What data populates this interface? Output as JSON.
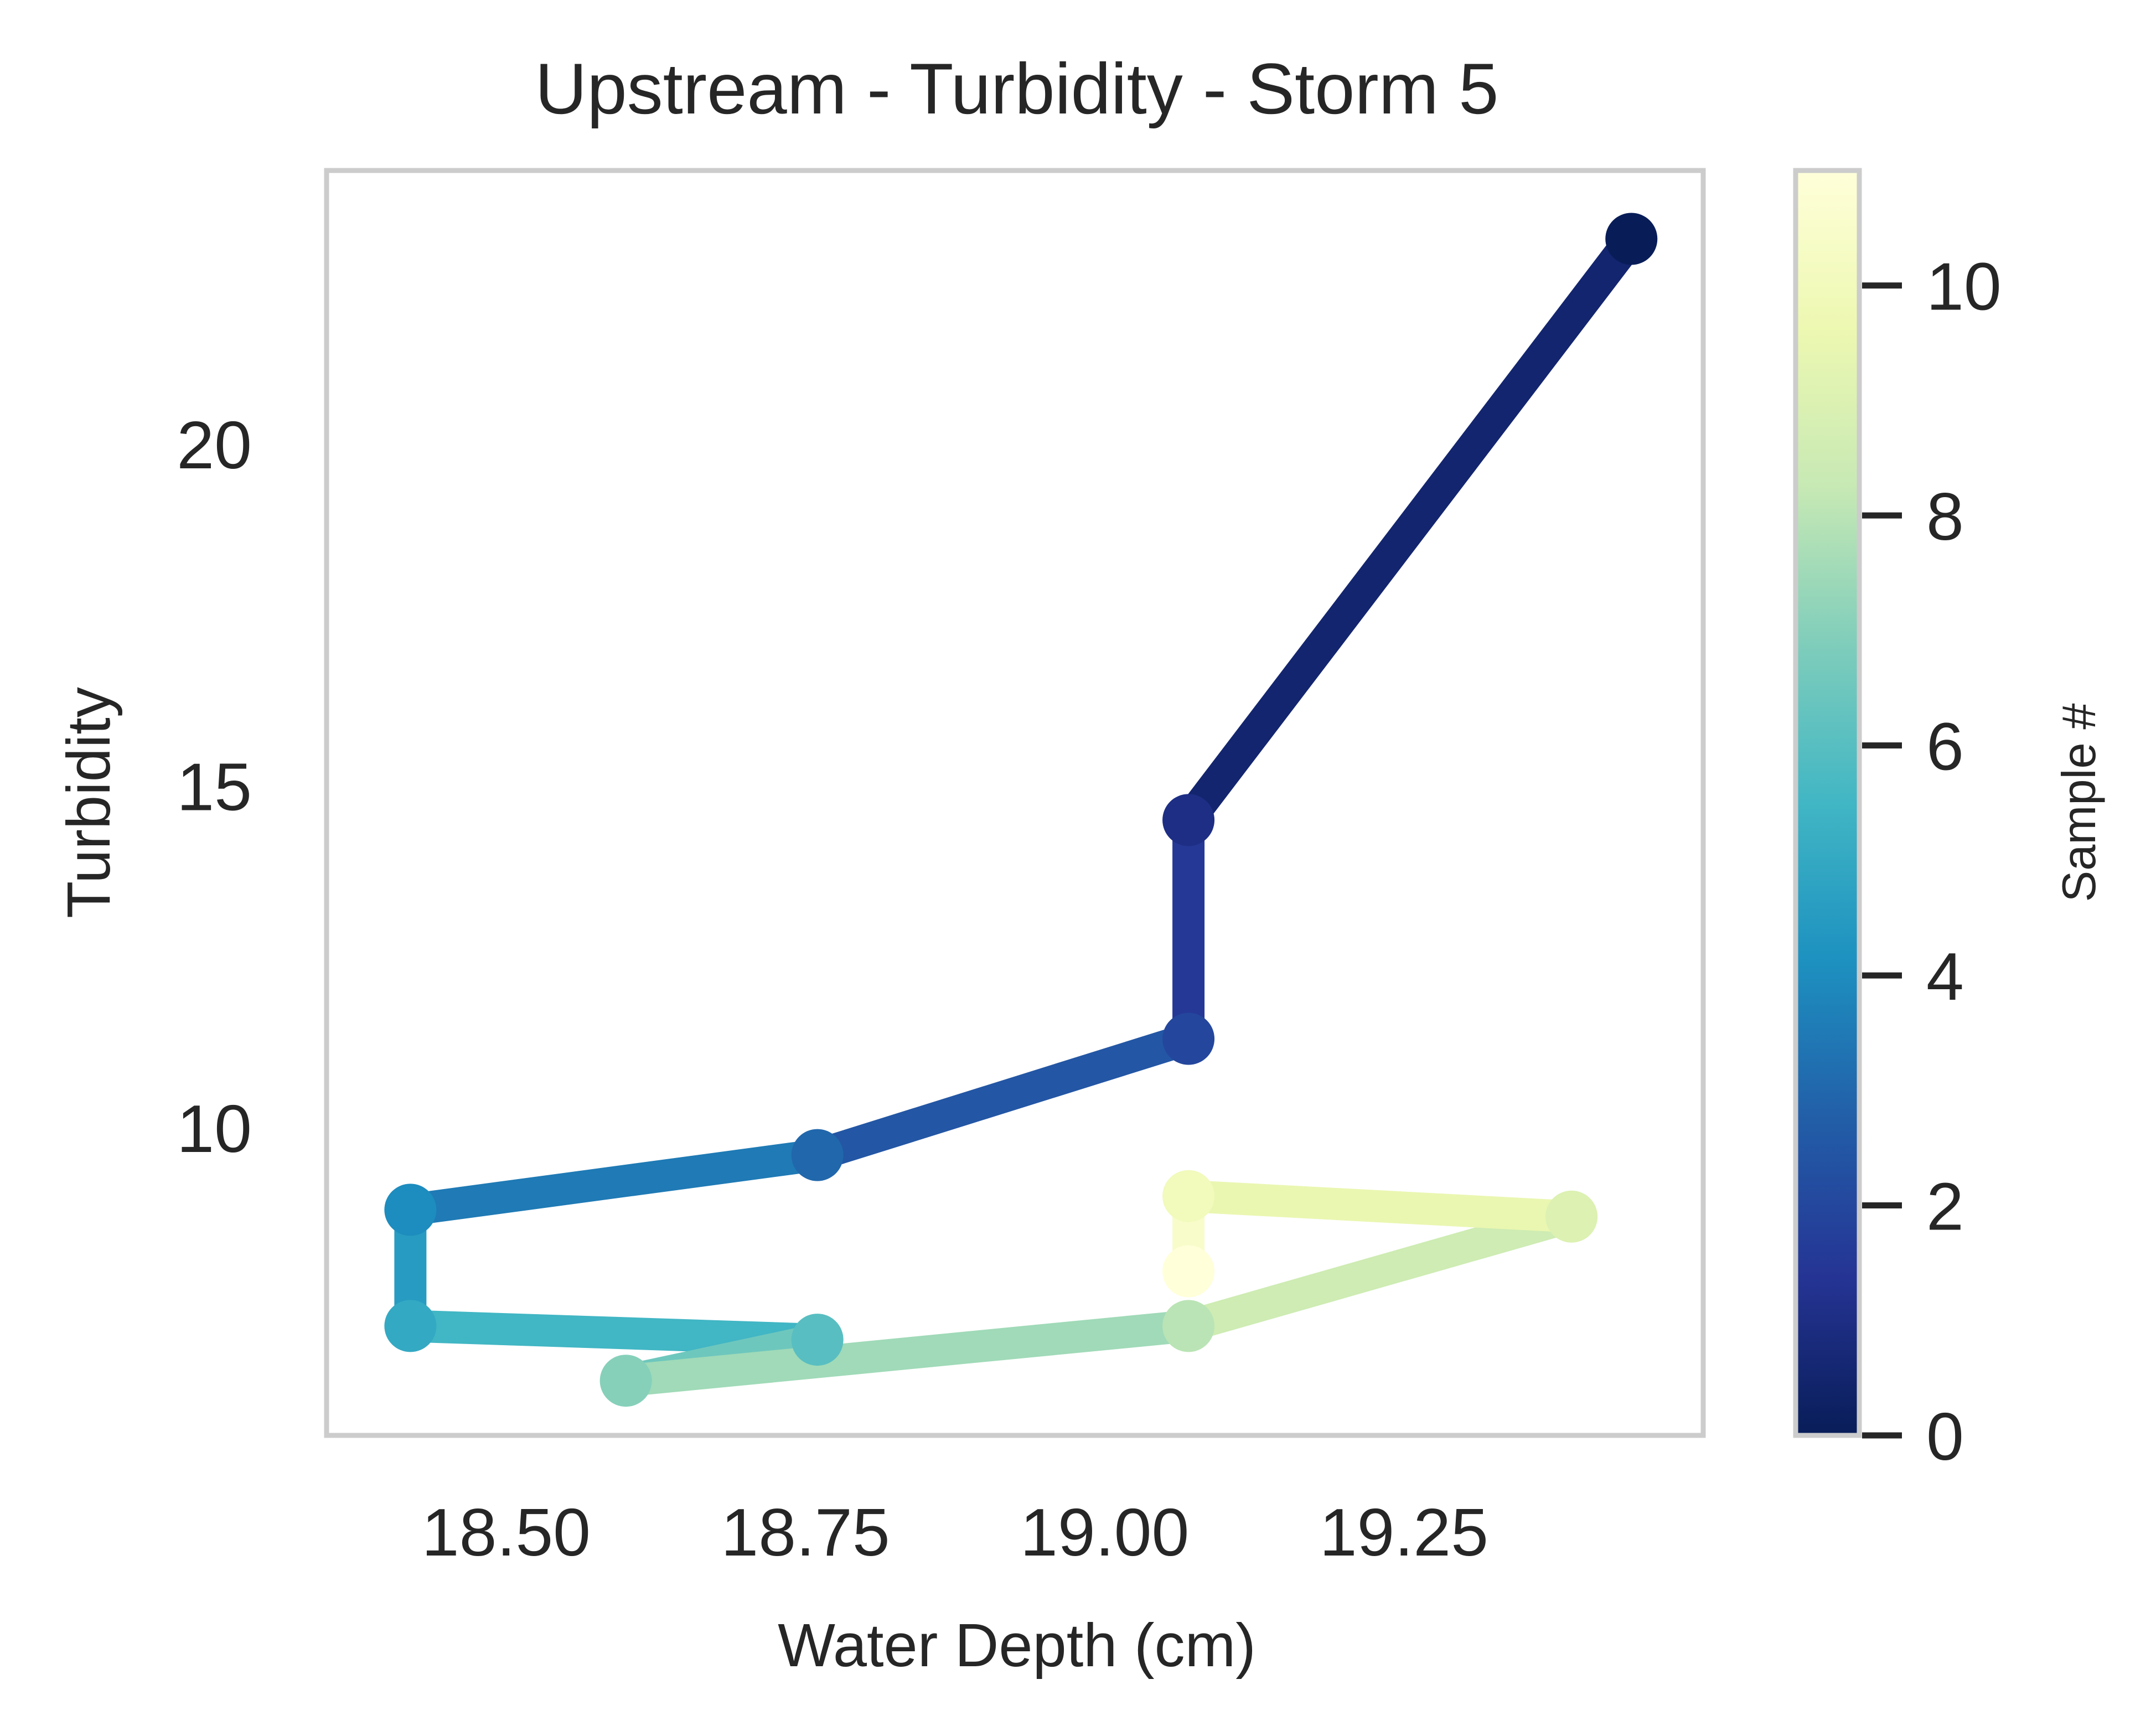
{
  "chart_data": {
    "type": "line",
    "title": "Upstream - Turbidity - Storm 5",
    "xlabel": "Water Depth (cm)",
    "ylabel": "Turbidity",
    "xlim": [
      18.35,
      19.5
    ],
    "ylim": [
      5.5,
      24.0
    ],
    "x_ticks": [
      18.5,
      18.75,
      19.0,
      19.25
    ],
    "x_tick_labels": [
      "18.50",
      "18.75",
      "19.00",
      "19.25"
    ],
    "y_ticks": [
      10,
      15,
      20
    ],
    "y_tick_labels": [
      "10",
      "15",
      "20"
    ],
    "grid": false,
    "colormap": "YlGnBu_r",
    "points": [
      {
        "sample": 0,
        "x": 19.44,
        "y": 23.0
      },
      {
        "sample": 1,
        "x": 19.07,
        "y": 14.5
      },
      {
        "sample": 2,
        "x": 19.07,
        "y": 11.3
      },
      {
        "sample": 3,
        "x": 18.76,
        "y": 9.6
      },
      {
        "sample": 4,
        "x": 18.42,
        "y": 8.8
      },
      {
        "sample": 5,
        "x": 18.42,
        "y": 7.1
      },
      {
        "sample": 6,
        "x": 18.76,
        "y": 6.9
      },
      {
        "sample": 7,
        "x": 18.6,
        "y": 6.3
      },
      {
        "sample": 8,
        "x": 19.07,
        "y": 7.1
      },
      {
        "sample": 9,
        "x": 19.39,
        "y": 8.7
      },
      {
        "sample": 10,
        "x": 19.07,
        "y": 9.0
      },
      {
        "sample": 11,
        "x": 19.07,
        "y": 7.9
      }
    ],
    "colorbar": {
      "label": "Sample #",
      "min": 0,
      "max": 11,
      "ticks": [
        0,
        2,
        4,
        6,
        8,
        10
      ],
      "tick_labels": [
        "0",
        "2",
        "4",
        "6",
        "8",
        "10"
      ],
      "colors": [
        "#081d58",
        "#253494",
        "#225ea8",
        "#1d91c0",
        "#41b6c4",
        "#7fcdbb",
        "#c7e9b4",
        "#edf8b1",
        "#ffffd9"
      ]
    }
  }
}
